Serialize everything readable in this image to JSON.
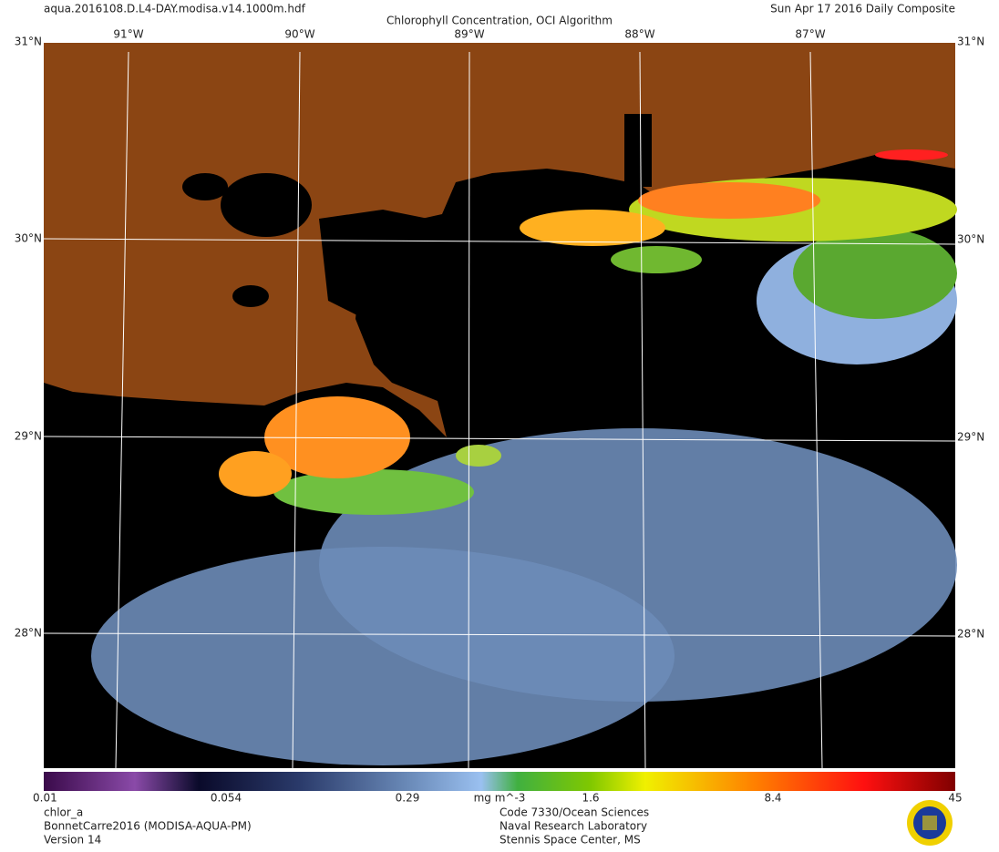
{
  "header": {
    "file": "aqua.2016108.D.L4-DAY.modisa.v14.1000m.hdf",
    "title": "Chlorophyll Concentration, OCI Algorithm",
    "date": "Sun Apr 17 2016 Daily Composite"
  },
  "map": {
    "lon_labels": [
      "91°W",
      "90°W",
      "89°W",
      "88°W",
      "87°W"
    ],
    "lat_labels": [
      "30°N",
      "29°N",
      "28°N"
    ],
    "corner_top": "31°N"
  },
  "colorbar": {
    "labels": [
      "0.01",
      "0.054",
      "0.29",
      "mg m^-3",
      "1.6",
      "8.4",
      "45"
    ]
  },
  "footer": {
    "left": [
      "chlor_a",
      "BonnetCarre2016 (MODISA-AQUA-PM)",
      "Version 14"
    ],
    "center": [
      "Code 7330/Ocean Sciences",
      "Naval Research Laboratory",
      "Stennis Space Center, MS"
    ]
  }
}
